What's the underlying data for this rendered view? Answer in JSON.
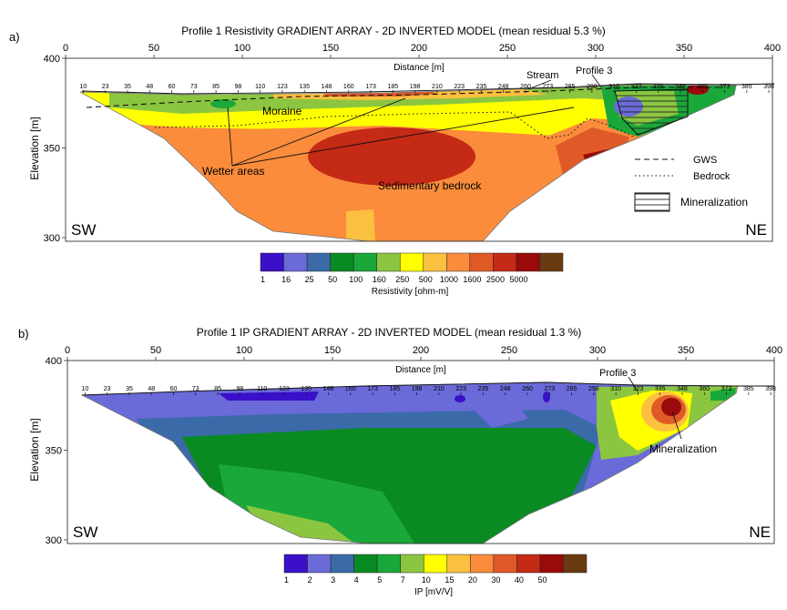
{
  "figure": {
    "panels": [
      {
        "label": "a)",
        "title": "Profile 1 Resistivity GRADIENT ARRAY - 2D INVERTED MODEL (mean residual 5.3 %)",
        "xlabel": "Distance [m]",
        "ylabel": "Elevation [m]",
        "x_ticks": [
          "0",
          "50",
          "100",
          "150",
          "200",
          "250",
          "300",
          "350",
          "400"
        ],
        "y_ticks": [
          "400",
          "350",
          "300"
        ],
        "electrodes": [
          "10",
          "23",
          "35",
          "48",
          "60",
          "73",
          "85",
          "98",
          "110",
          "123",
          "135",
          "148",
          "160",
          "173",
          "185",
          "198",
          "210",
          "223",
          "235",
          "248",
          "260",
          "273",
          "285",
          "298",
          "310",
          "323",
          "335",
          "348",
          "360",
          "373",
          "385",
          "398"
        ],
        "left_corner": "SW",
        "right_corner": "NE",
        "annotations": {
          "moraine": "Moraine",
          "wetter": "Wetter areas",
          "bedrock_zone": "Sedimentary bedrock",
          "stream": "Stream",
          "profile3": "Profile 3"
        },
        "legend": {
          "gws": "GWS",
          "bedrock": "Bedrock",
          "mineralization": "Mineralization"
        },
        "colorbar": {
          "title": "Resistivity [ohm-m]",
          "ticks": [
            "1",
            "16",
            "25",
            "50",
            "100",
            "160",
            "250",
            "500",
            "1000",
            "1600",
            "2500",
            "5000"
          ],
          "colors": [
            "#3a10c8",
            "#6a6ad8",
            "#3a6aa8",
            "#0a8a22",
            "#1aa83a",
            "#8cc640",
            "#ffff00",
            "#fcc040",
            "#fa8c3c",
            "#e05a28",
            "#c42a16",
            "#9a0a0a",
            "#6a3a10"
          ]
        }
      },
      {
        "label": "b)",
        "title": "Profile 1 IP GRADIENT ARRAY - 2D INVERTED MODEL (mean residual 1.3 %)",
        "xlabel": "Distance [m]",
        "ylabel": "Elevation [m]",
        "x_ticks": [
          "0",
          "50",
          "100",
          "150",
          "200",
          "250",
          "300",
          "350",
          "400"
        ],
        "y_ticks": [
          "400",
          "350",
          "300"
        ],
        "electrodes": [
          "10",
          "23",
          "35",
          "48",
          "60",
          "73",
          "85",
          "98",
          "110",
          "123",
          "135",
          "148",
          "160",
          "173",
          "185",
          "198",
          "210",
          "223",
          "235",
          "248",
          "260",
          "273",
          "285",
          "298",
          "310",
          "323",
          "335",
          "348",
          "360",
          "373",
          "385",
          "398"
        ],
        "left_corner": "SW",
        "right_corner": "NE",
        "annotations": {
          "profile3": "Profile 3",
          "mineralization": "Mineralization"
        },
        "colorbar": {
          "title": "IP [mV/V]",
          "ticks": [
            "1",
            "2",
            "3",
            "4",
            "5",
            "7",
            "10",
            "15",
            "20",
            "30",
            "40",
            "50"
          ],
          "colors": [
            "#3a10c8",
            "#6a6ad8",
            "#3a6aa8",
            "#0a8a22",
            "#1aa83a",
            "#8cc640",
            "#ffff00",
            "#fcc040",
            "#fa8c3c",
            "#e05a28",
            "#c42a16",
            "#9a0a0a",
            "#6a3a10"
          ]
        }
      }
    ]
  }
}
